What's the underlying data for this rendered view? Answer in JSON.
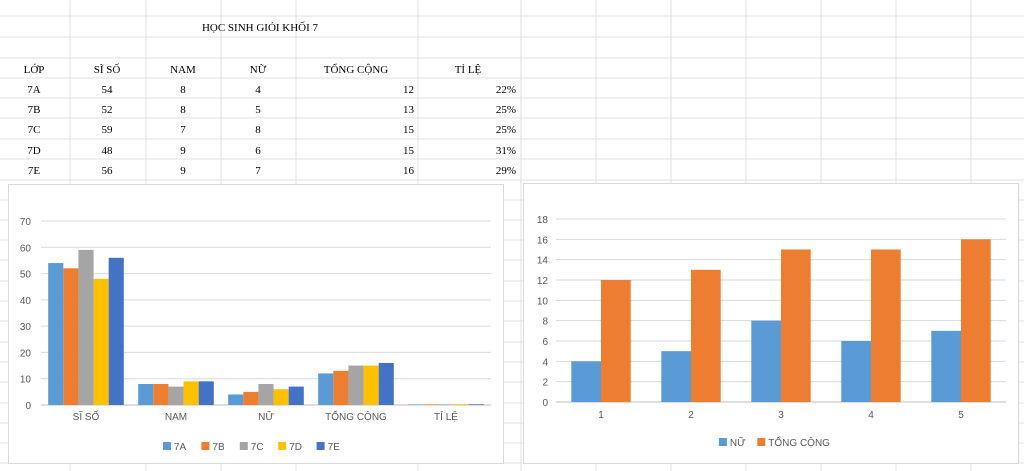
{
  "sheet": {
    "title": "HỌC SINH GIỎI KHỐI 7",
    "headers": [
      "LỚP",
      "SĨ SỐ",
      "NAM",
      "NỮ",
      "TỔNG CỘNG",
      "TỈ LỆ"
    ],
    "rows": [
      [
        "7A",
        "54",
        "8",
        "4",
        "12",
        "22%"
      ],
      [
        "7B",
        "52",
        "8",
        "5",
        "13",
        "25%"
      ],
      [
        "7C",
        "59",
        "7",
        "8",
        "15",
        "25%"
      ],
      [
        "7D",
        "48",
        "9",
        "6",
        "15",
        "31%"
      ],
      [
        "7E",
        "56",
        "9",
        "7",
        "16",
        "29%"
      ]
    ]
  },
  "chart_data": [
    {
      "type": "bar",
      "categories": [
        "SĨ SỐ",
        "NAM",
        "NỮ",
        "TỔNG CỘNG",
        "TỈ LỆ"
      ],
      "series": [
        {
          "name": "7A",
          "color": "#5b9bd5",
          "values": [
            54,
            8,
            4,
            12,
            0.22
          ]
        },
        {
          "name": "7B",
          "color": "#ed7d31",
          "values": [
            52,
            8,
            5,
            13,
            0.25
          ]
        },
        {
          "name": "7C",
          "color": "#a5a5a5",
          "values": [
            59,
            7,
            8,
            15,
            0.25
          ]
        },
        {
          "name": "7D",
          "color": "#ffc000",
          "values": [
            48,
            9,
            6,
            15,
            0.31
          ]
        },
        {
          "name": "7E",
          "color": "#4472c4",
          "values": [
            56,
            9,
            7,
            16,
            0.29
          ]
        }
      ],
      "ylim": [
        0,
        70
      ],
      "yticks": [
        0,
        10,
        20,
        30,
        40,
        50,
        60,
        70
      ],
      "grid": true,
      "legend": "bottom"
    },
    {
      "type": "bar",
      "categories": [
        "1",
        "2",
        "3",
        "4",
        "5"
      ],
      "series": [
        {
          "name": "NỮ",
          "color": "#5b9bd5",
          "values": [
            4,
            5,
            8,
            6,
            7
          ]
        },
        {
          "name": "TỔNG CỘNG",
          "color": "#ed7d31",
          "values": [
            12,
            13,
            15,
            15,
            16
          ]
        }
      ],
      "ylim": [
        0,
        18
      ],
      "yticks": [
        0,
        2,
        4,
        6,
        8,
        10,
        12,
        14,
        16,
        18
      ],
      "grid": true,
      "legend": "bottom"
    }
  ]
}
